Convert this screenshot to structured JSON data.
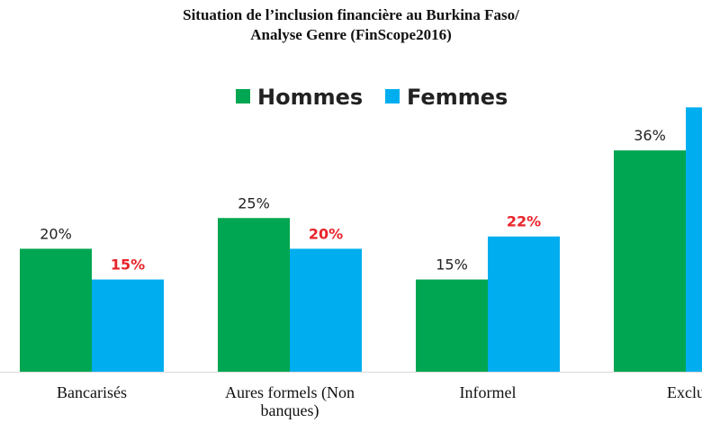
{
  "chart_data": {
    "type": "bar",
    "title_line1": "Situation de l’inclusion financière au Burkina Faso/",
    "title_line2": "Analyse Genre (FinScope2016)",
    "categories": [
      [
        "Bancarisés"
      ],
      [
        "Aures formels (Non",
        "banques)"
      ],
      [
        "Informel"
      ],
      [
        "Exclu"
      ]
    ],
    "series": [
      {
        "name": "Hommes",
        "color": "#00a651",
        "values": [
          20,
          25,
          15,
          36
        ],
        "labels": [
          "20%",
          "25%",
          "15%",
          "36%"
        ]
      },
      {
        "name": "Femmes",
        "color": "#00aeef",
        "values": [
          15,
          20,
          22,
          43
        ],
        "labels": [
          "15%",
          "20%",
          "22%",
          ""
        ]
      }
    ],
    "highlight_color": "#e8232a",
    "highlight_series": "Femmes",
    "legend_position": "top-center",
    "grid": false
  }
}
